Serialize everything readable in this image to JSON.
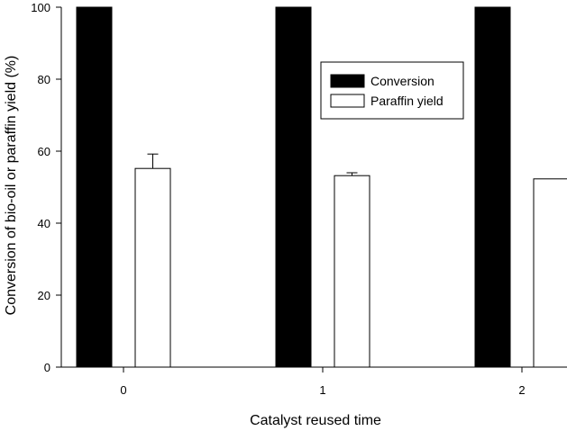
{
  "chart_data": {
    "type": "bar",
    "xlabel": "Catalyst reused time",
    "ylabel": "Conversion of bio-oil or paraffin yield (%)",
    "categories": [
      "0",
      "1",
      "2"
    ],
    "ylim": [
      0,
      100
    ],
    "yticks": [
      "0",
      "20",
      "40",
      "60",
      "80",
      "100"
    ],
    "series": [
      {
        "name": "Conversion",
        "values": [
          100,
          100,
          100
        ],
        "errors": [
          0,
          0,
          0
        ],
        "color": "#000000"
      },
      {
        "name": "Paraffin yield",
        "values": [
          55.2,
          53.2,
          52.3
        ],
        "errors": [
          4.0,
          0.8,
          0
        ],
        "color": "#ffffff"
      }
    ],
    "legend": {
      "position": "top-right"
    },
    "grid": false
  }
}
